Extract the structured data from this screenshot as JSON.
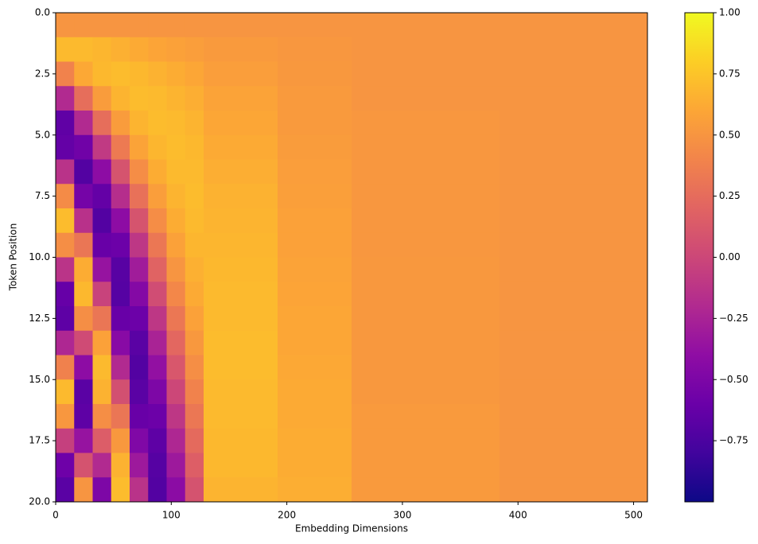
{
  "chart_data": {
    "type": "heatmap",
    "xlabel": "Embedding Dimensions",
    "ylabel": "Token Position",
    "colormap": "plasma",
    "xbins": [
      0,
      16,
      32,
      48,
      64,
      80,
      96,
      112,
      128,
      192,
      256,
      384,
      512
    ],
    "ybins": [
      0,
      1,
      2,
      3,
      4,
      5,
      6,
      7,
      8,
      9,
      10,
      11,
      12,
      13,
      14,
      15,
      16,
      17,
      18,
      19,
      20
    ],
    "z": [
      [
        0.5,
        0.5,
        0.5,
        0.5,
        0.5,
        0.5,
        0.5,
        0.5,
        0.5,
        0.5,
        0.5,
        0.5
      ],
      [
        0.7,
        0.7,
        0.68,
        0.65,
        0.62,
        0.59,
        0.57,
        0.55,
        0.53,
        0.51,
        0.5,
        0.5
      ],
      [
        0.39,
        0.61,
        0.69,
        0.71,
        0.69,
        0.66,
        0.63,
        0.6,
        0.55,
        0.52,
        0.5,
        0.5
      ],
      [
        -0.2,
        0.26,
        0.54,
        0.67,
        0.71,
        0.7,
        0.67,
        0.64,
        0.58,
        0.53,
        0.5,
        0.5
      ],
      [
        -0.65,
        -0.2,
        0.26,
        0.54,
        0.67,
        0.71,
        0.7,
        0.67,
        0.6,
        0.53,
        0.51,
        0.5
      ],
      [
        -0.63,
        -0.57,
        -0.09,
        0.34,
        0.58,
        0.68,
        0.71,
        0.69,
        0.62,
        0.54,
        0.51,
        0.5
      ],
      [
        -0.14,
        -0.71,
        -0.41,
        0.09,
        0.45,
        0.63,
        0.7,
        0.7,
        0.64,
        0.55,
        0.51,
        0.5
      ],
      [
        0.44,
        -0.54,
        -0.63,
        -0.17,
        0.28,
        0.55,
        0.67,
        0.71,
        0.66,
        0.56,
        0.51,
        0.5
      ],
      [
        0.71,
        -0.15,
        -0.71,
        -0.41,
        0.09,
        0.45,
        0.63,
        0.7,
        0.67,
        0.57,
        0.51,
        0.5
      ],
      [
        0.46,
        0.31,
        -0.61,
        -0.59,
        -0.11,
        0.32,
        0.57,
        0.68,
        0.68,
        0.57,
        0.51,
        0.5
      ],
      [
        -0.13,
        0.63,
        -0.36,
        -0.69,
        -0.3,
        0.19,
        0.5,
        0.65,
        0.69,
        0.58,
        0.52,
        0.5
      ],
      [
        -0.62,
        0.69,
        -0.03,
        -0.7,
        -0.46,
        0.04,
        0.42,
        0.62,
        0.7,
        0.59,
        0.52,
        0.5
      ],
      [
        -0.66,
        0.46,
        0.31,
        -0.61,
        -0.59,
        -0.11,
        0.32,
        0.57,
        0.7,
        0.6,
        0.52,
        0.5
      ],
      [
        -0.22,
        0.03,
        0.57,
        -0.44,
        -0.68,
        -0.25,
        0.22,
        0.52,
        0.71,
        0.6,
        0.52,
        0.5
      ],
      [
        0.38,
        -0.41,
        0.7,
        -0.2,
        -0.71,
        -0.38,
        0.11,
        0.46,
        0.71,
        0.61,
        0.52,
        0.5
      ],
      [
        0.7,
        -0.68,
        0.66,
        0.06,
        -0.68,
        -0.5,
        0,
        0.39,
        0.7,
        0.62,
        0.52,
        0.5
      ],
      [
        0.51,
        -0.66,
        0.46,
        0.31,
        -0.61,
        -0.59,
        -0.11,
        0.32,
        0.7,
        0.62,
        0.53,
        0.5
      ],
      [
        -0.05,
        -0.36,
        0.15,
        0.52,
        -0.48,
        -0.66,
        -0.22,
        0.24,
        0.69,
        0.63,
        0.53,
        0.5
      ],
      [
        -0.58,
        0.08,
        -0.2,
        0.66,
        -0.32,
        -0.7,
        -0.32,
        0.16,
        0.69,
        0.63,
        0.53,
        0.5
      ],
      [
        -0.68,
        0.5,
        -0.5,
        0.71,
        -0.14,
        -0.71,
        -0.42,
        0.08,
        0.67,
        0.64,
        0.53,
        0.5
      ]
    ],
    "xlim": [
      0,
      512
    ],
    "xticks": [
      0,
      100,
      200,
      300,
      400,
      500
    ],
    "ylim": [
      20,
      0
    ],
    "yticks": [
      {
        "value": 0,
        "label": "0.0"
      },
      2.5,
      {
        "value": 5,
        "label": "5.0"
      },
      7.5,
      {
        "value": 10,
        "label": "10.0"
      },
      12.5,
      {
        "value": 15,
        "label": "15.0"
      },
      17.5,
      {
        "value": 20,
        "label": "20.0"
      }
    ],
    "zlim": [
      -1,
      1
    ],
    "zticks": [
      {
        "value": 1,
        "label": "1.00"
      },
      {
        "value": 0.75,
        "label": "0.75"
      },
      {
        "value": 0.5,
        "label": "0.50"
      },
      {
        "value": 0.25,
        "label": "0.25"
      },
      {
        "value": 0,
        "label": "0.00"
      },
      {
        "value": -0.25,
        "label": "−0.25"
      },
      {
        "value": -0.5,
        "label": "−0.50"
      },
      {
        "value": -0.75,
        "label": "−0.75"
      }
    ]
  }
}
